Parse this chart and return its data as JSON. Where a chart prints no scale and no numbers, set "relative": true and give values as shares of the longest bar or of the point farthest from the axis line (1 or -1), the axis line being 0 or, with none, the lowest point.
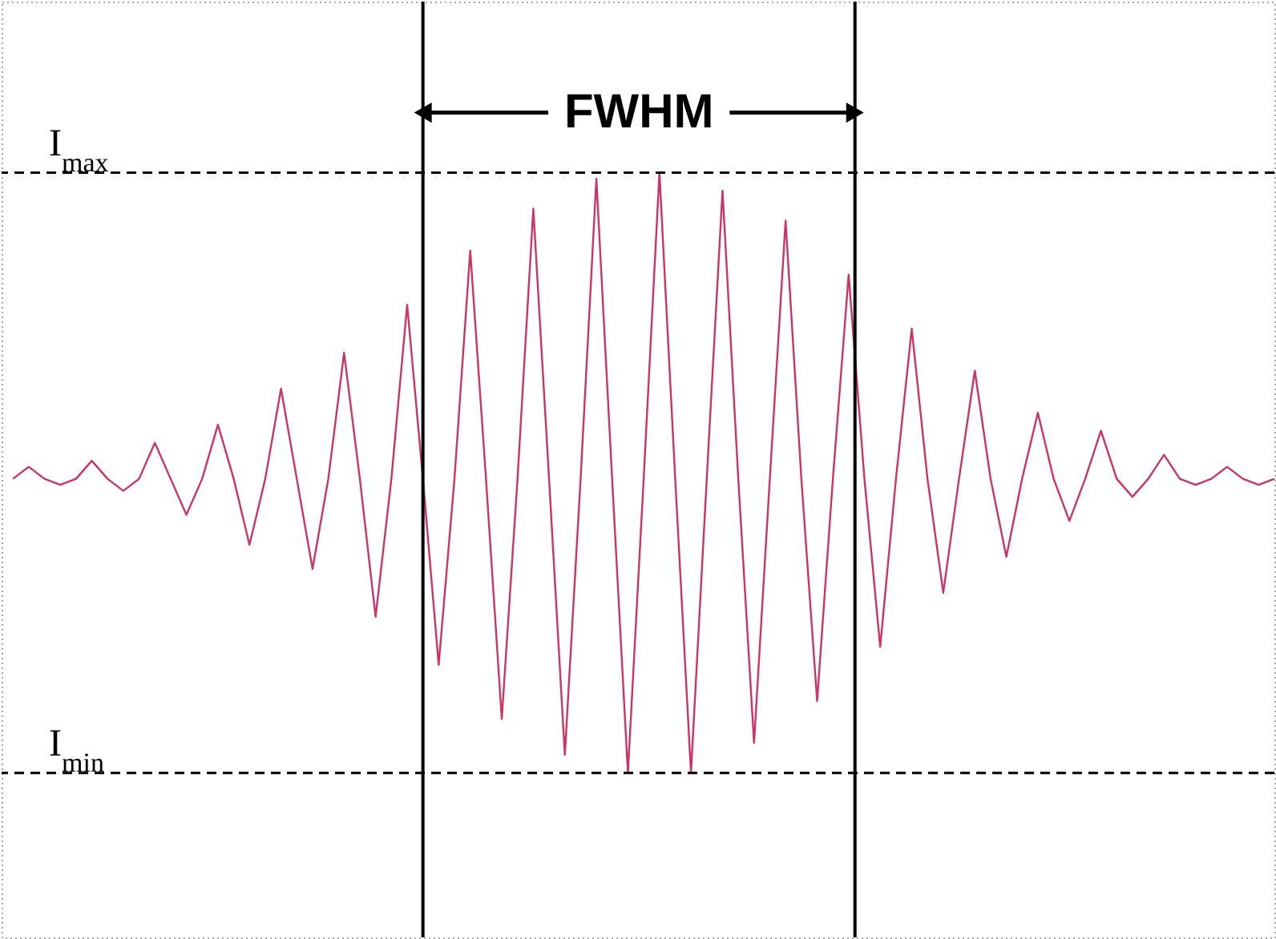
{
  "chart_data": {
    "type": "line",
    "relative": true,
    "tick_labels": false,
    "marker": "none",
    "line_style": "solid",
    "categories": [
      null,
      null,
      null,
      null,
      null,
      null,
      null,
      null,
      null,
      null,
      null,
      null,
      null,
      null,
      null,
      null,
      null,
      null,
      null,
      null,
      null,
      null,
      null,
      null,
      null,
      null,
      null,
      null,
      null,
      null,
      null,
      null,
      null,
      null,
      null,
      null,
      null,
      null,
      null,
      null,
      null,
      null,
      null,
      null,
      null,
      null,
      null,
      null,
      null,
      null,
      null,
      null,
      null,
      null,
      null,
      null,
      null,
      null,
      null,
      null,
      null,
      null,
      null,
      null,
      null,
      null,
      null,
      null,
      null,
      null,
      null,
      null,
      null,
      null,
      null,
      null,
      null,
      null,
      null,
      null,
      null
    ],
    "series": [
      {
        "color": "#cc3366",
        "values": [
          0.49,
          0.51,
          0.49,
          0.48,
          0.49,
          0.52,
          0.49,
          0.47,
          0.49,
          0.55,
          0.49,
          0.43,
          0.49,
          0.58,
          0.49,
          0.38,
          0.49,
          0.64,
          0.49,
          0.34,
          0.49,
          0.7,
          0.49,
          0.26,
          0.49,
          0.78,
          0.49,
          0.18,
          0.49,
          0.87,
          0.49,
          0.09,
          0.49,
          0.94,
          0.49,
          0.03,
          0.49,
          0.99,
          0.49,
          0,
          0.49,
          1,
          0.49,
          0,
          0.49,
          0.97,
          0.49,
          0.05,
          0.49,
          0.92,
          0.49,
          0.12,
          0.49,
          0.83,
          0.49,
          0.21,
          0.49,
          0.74,
          0.49,
          0.3,
          0.49,
          0.67,
          0.49,
          0.36,
          0.49,
          0.6,
          0.49,
          0.42,
          0.49,
          0.57,
          0.49,
          0.46,
          0.49,
          0.53,
          0.49,
          0.48,
          0.49,
          0.51,
          0.49,
          0.48,
          0.49
        ]
      }
    ],
    "ref_lines": [
      {
        "axis": "y",
        "value": 1,
        "label": "I$_{max}$",
        "color": "#000000",
        "line_style": "dashed"
      },
      {
        "axis": "y",
        "value": 0,
        "label": "I$_{min}$",
        "color": "#000000",
        "line_style": "dashed"
      }
    ],
    "annotations": [
      "FWHM"
    ]
  }
}
